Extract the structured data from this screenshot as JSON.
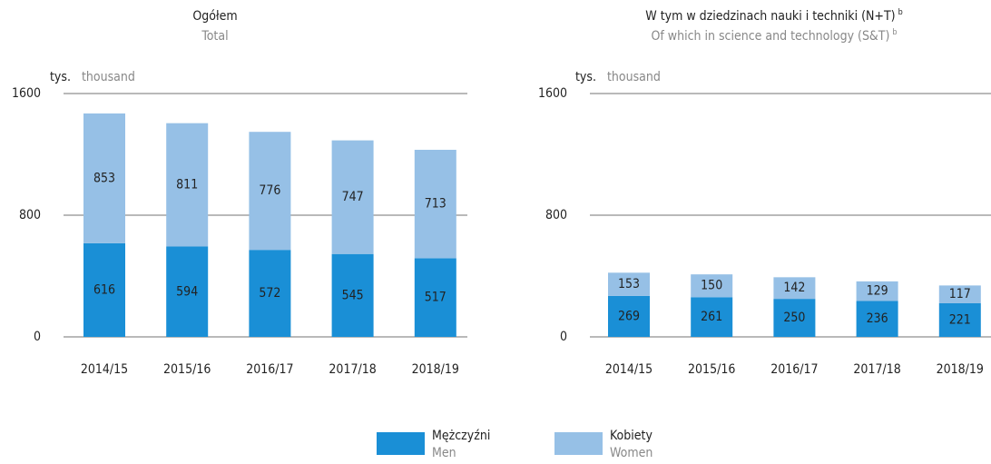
{
  "chart_data": [
    {
      "type": "bar",
      "stacked": true,
      "title": "Ogółem",
      "subtitle": "Total",
      "ylabel": "tys.",
      "ylabel_en": "thousand",
      "categories": [
        "2014/15",
        "2015/16",
        "2016/17",
        "2017/18",
        "2018/19"
      ],
      "series": [
        {
          "values": [
            616,
            594,
            572,
            545,
            517
          ]
        },
        {
          "values": [
            853,
            811,
            776,
            747,
            713
          ]
        }
      ],
      "ylim": [
        0,
        1600
      ],
      "yticks": [
        0,
        800,
        1600
      ],
      "grid": true
    },
    {
      "type": "bar",
      "stacked": true,
      "title": "W tym w dziedzinach nauki i techniki (N+T)",
      "subtitle": "Of which in science and technology (S&T)",
      "title_note": "b",
      "ylabel": "tys.",
      "ylabel_en": "thousand",
      "categories": [
        "2014/15",
        "2015/16",
        "2016/17",
        "2017/18",
        "2018/19"
      ],
      "series": [
        {
          "values": [
            269,
            261,
            250,
            236,
            221
          ]
        },
        {
          "values": [
            153,
            150,
            142,
            129,
            117
          ]
        }
      ],
      "ylim": [
        0,
        1600
      ],
      "yticks": [
        0,
        800,
        1600
      ],
      "grid": true
    }
  ],
  "legend": {
    "series": [
      {
        "name": "Mężczyźni",
        "name_en": "Men",
        "color": "#1a8fd6"
      },
      {
        "name": "Kobiety",
        "name_en": "Women",
        "color": "#96c0e6"
      }
    ]
  }
}
